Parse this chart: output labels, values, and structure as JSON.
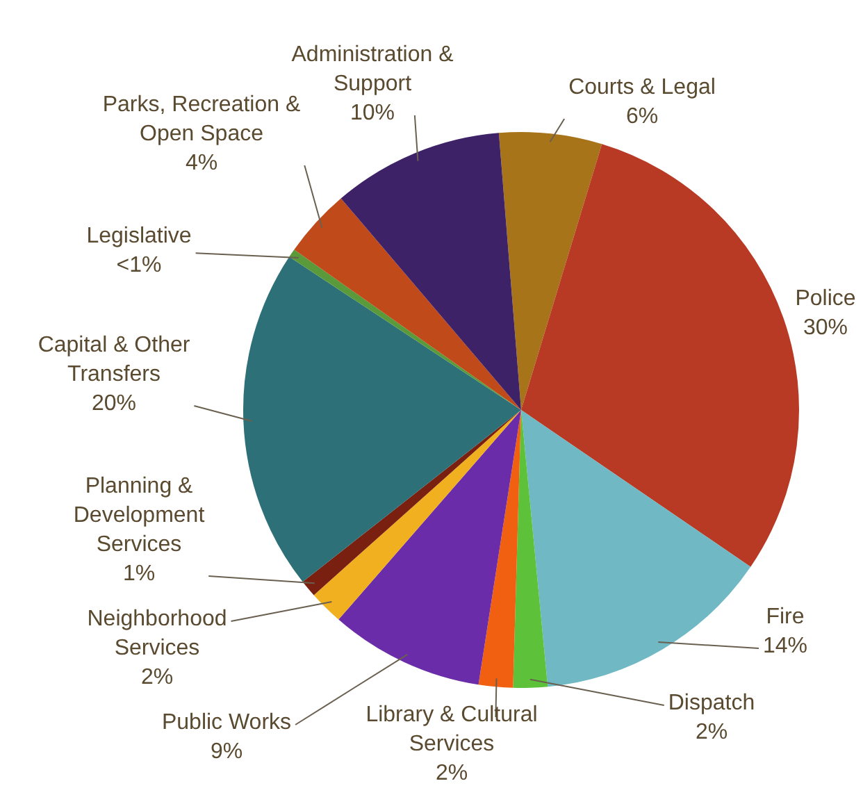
{
  "chart_data": {
    "type": "pie",
    "categories": [
      "Courts & Legal",
      "Police",
      "Fire",
      "Dispatch",
      "Library & Cultural Services",
      "Public Works",
      "Neighborhood Services",
      "Planning & Development Services",
      "Capital & Other Transfers",
      "Legislative",
      "Parks, Recreation & Open Space",
      "Administration & Support"
    ],
    "values": [
      6,
      30,
      14,
      2,
      2,
      9,
      2,
      1,
      20,
      0.5,
      4,
      10
    ],
    "value_labels": [
      "6%",
      "30%",
      "14%",
      "2%",
      "2%",
      "9%",
      "2%",
      "1%",
      "20%",
      "<1%",
      "4%",
      "10%"
    ],
    "colors": [
      "#a8741a",
      "#b83a24",
      "#6fb8c4",
      "#5dc23a",
      "#f06010",
      "#6a2ca8",
      "#f0b020",
      "#7a2010",
      "#2e7078",
      "#5a9a3a",
      "#c04a1a",
      "#3e2268"
    ],
    "legend": false
  }
}
